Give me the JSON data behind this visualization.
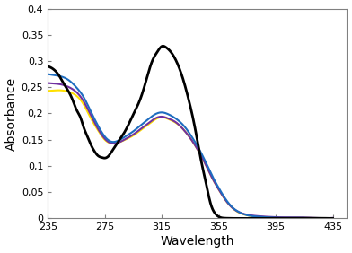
{
  "title": "",
  "xlabel": "Wavelength",
  "ylabel": "Absorbance",
  "xlim": [
    235,
    445
  ],
  "ylim": [
    0,
    0.4
  ],
  "xticks": [
    235,
    275,
    315,
    355,
    395,
    435
  ],
  "yticks": [
    0,
    0.05,
    0.1,
    0.15,
    0.2,
    0.25,
    0.3,
    0.35,
    0.4
  ],
  "ytick_labels": [
    "0",
    "0,05",
    "0,1",
    "0,15",
    "0,2",
    "0,25",
    "0,3",
    "0,35",
    "0,4"
  ],
  "colors": {
    "black": "#000000",
    "blue": "#1E6DC0",
    "yellow": "#FFE000",
    "violet": "#7030A0"
  },
  "black_x": [
    235,
    240,
    243,
    246,
    250,
    253,
    255,
    258,
    260,
    263,
    265,
    268,
    270,
    273,
    275,
    278,
    280,
    285,
    290,
    295,
    300,
    305,
    308,
    312,
    315,
    318,
    322,
    326,
    330,
    334,
    337,
    340,
    343,
    346,
    348,
    350,
    352,
    354,
    356,
    360,
    365,
    370,
    380,
    435
  ],
  "black_y": [
    0.29,
    0.282,
    0.272,
    0.258,
    0.24,
    0.222,
    0.208,
    0.192,
    0.175,
    0.155,
    0.142,
    0.127,
    0.12,
    0.116,
    0.115,
    0.12,
    0.128,
    0.148,
    0.17,
    0.198,
    0.228,
    0.272,
    0.298,
    0.318,
    0.328,
    0.326,
    0.315,
    0.295,
    0.265,
    0.225,
    0.19,
    0.148,
    0.105,
    0.068,
    0.042,
    0.022,
    0.011,
    0.005,
    0.002,
    0.0004,
    0.0001,
    0.0,
    0.0,
    0.0
  ],
  "blue_x": [
    235,
    240,
    245,
    250,
    255,
    260,
    265,
    270,
    275,
    280,
    285,
    290,
    295,
    300,
    305,
    310,
    315,
    320,
    325,
    330,
    335,
    340,
    345,
    350,
    355,
    360,
    365,
    370,
    375,
    380,
    390,
    400,
    410,
    420,
    435
  ],
  "blue_y": [
    0.275,
    0.273,
    0.27,
    0.263,
    0.25,
    0.232,
    0.205,
    0.178,
    0.156,
    0.146,
    0.149,
    0.157,
    0.166,
    0.177,
    0.188,
    0.198,
    0.202,
    0.198,
    0.19,
    0.178,
    0.16,
    0.138,
    0.112,
    0.083,
    0.058,
    0.036,
    0.02,
    0.011,
    0.006,
    0.004,
    0.002,
    0.001,
    0.001,
    0.0005,
    0.0
  ],
  "yellow_x": [
    235,
    240,
    245,
    250,
    255,
    260,
    265,
    270,
    275,
    280,
    285,
    290,
    295,
    300,
    305,
    310,
    315,
    320,
    325,
    330,
    335,
    340,
    345,
    350,
    355,
    360,
    365,
    370,
    375,
    380,
    390,
    400,
    410,
    420,
    435
  ],
  "yellow_y": [
    0.243,
    0.244,
    0.244,
    0.241,
    0.234,
    0.218,
    0.192,
    0.169,
    0.15,
    0.143,
    0.145,
    0.151,
    0.158,
    0.168,
    0.178,
    0.188,
    0.193,
    0.189,
    0.182,
    0.17,
    0.153,
    0.132,
    0.107,
    0.079,
    0.055,
    0.034,
    0.019,
    0.01,
    0.006,
    0.003,
    0.001,
    0.0005,
    0.0003,
    0.0001,
    0.0
  ],
  "violet_x": [
    235,
    240,
    245,
    250,
    255,
    260,
    265,
    270,
    275,
    280,
    285,
    290,
    295,
    300,
    305,
    310,
    315,
    320,
    325,
    330,
    335,
    340,
    345,
    350,
    355,
    360,
    365,
    370,
    375,
    380,
    390,
    400,
    410,
    420,
    435
  ],
  "violet_y": [
    0.258,
    0.257,
    0.255,
    0.25,
    0.241,
    0.224,
    0.198,
    0.172,
    0.152,
    0.143,
    0.145,
    0.152,
    0.16,
    0.17,
    0.18,
    0.19,
    0.194,
    0.19,
    0.183,
    0.17,
    0.153,
    0.132,
    0.107,
    0.079,
    0.055,
    0.034,
    0.019,
    0.011,
    0.007,
    0.005,
    0.003,
    0.002,
    0.002,
    0.001,
    0.001
  ]
}
